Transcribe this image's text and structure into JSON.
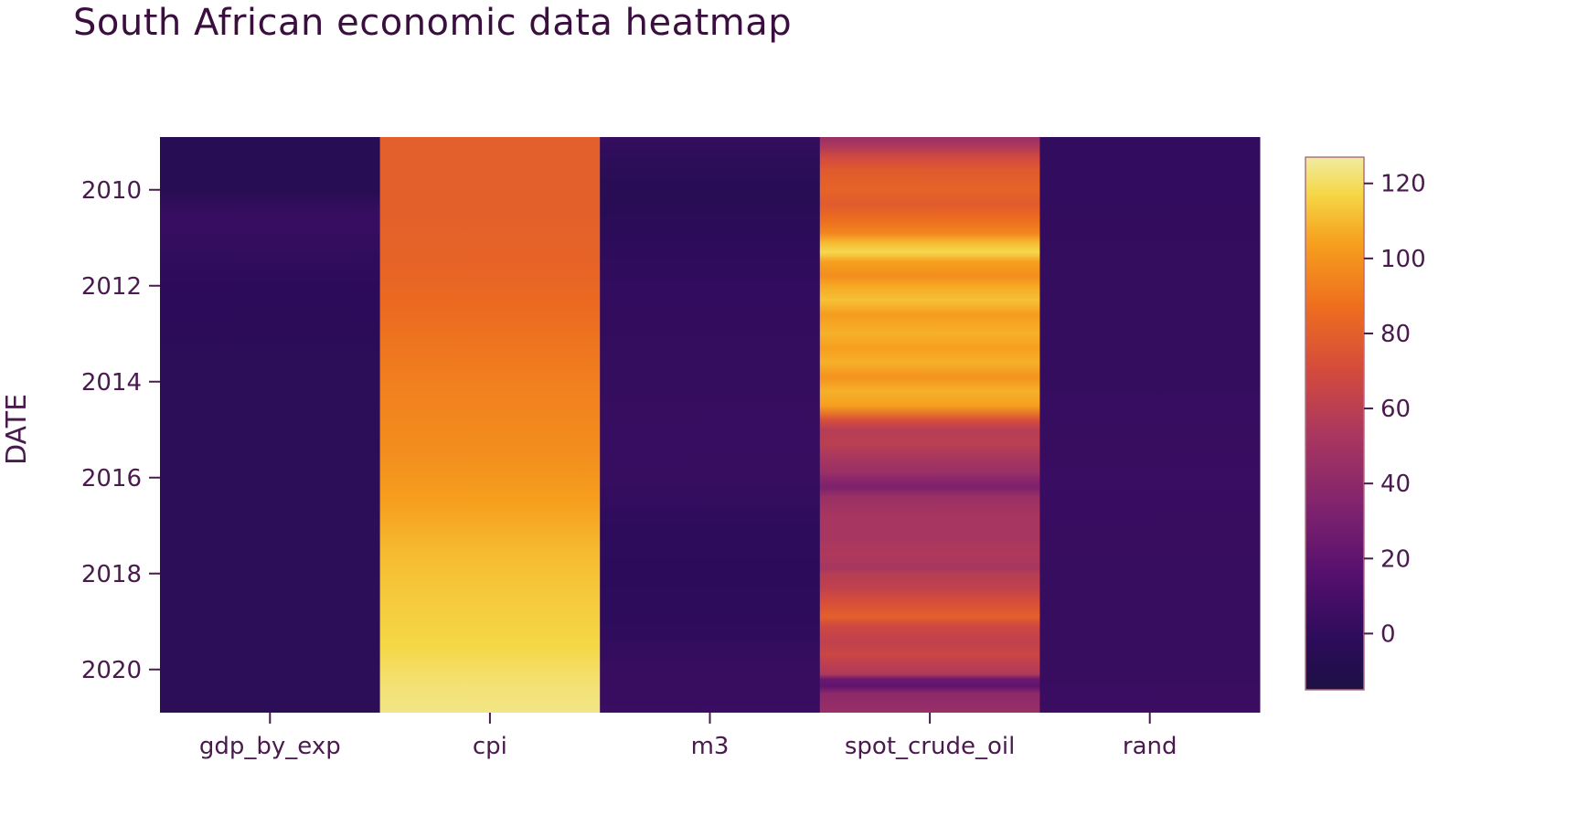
{
  "chart_data": {
    "type": "heatmap",
    "title": "South African economic data heatmap",
    "ylabel": "DATE",
    "xlabel": "",
    "colorscale": "inferno",
    "categories": [
      "gdp_by_exp",
      "cpi",
      "m3",
      "spot_crude_oil",
      "rand"
    ],
    "ylim": [
      2008.9,
      2020.9
    ],
    "y_ticks": [
      2010,
      2012,
      2014,
      2016,
      2018,
      2020
    ],
    "colorbar": {
      "zmin": -15,
      "zmax": 127,
      "ticks": [
        0,
        20,
        40,
        60,
        80,
        100,
        120
      ]
    },
    "series": [
      {
        "name": "gdp_by_exp",
        "points": [
          [
            2008.9,
            -6
          ],
          [
            2010,
            -6
          ],
          [
            2010.5,
            3
          ],
          [
            2011,
            2
          ],
          [
            2012,
            -2
          ],
          [
            2014,
            -3
          ],
          [
            2016,
            -3
          ],
          [
            2018,
            -3
          ],
          [
            2020,
            -3
          ],
          [
            2020.9,
            -3
          ]
        ]
      },
      {
        "name": "cpi",
        "points": [
          [
            2008.9,
            80
          ],
          [
            2010,
            80
          ],
          [
            2011.5,
            82
          ],
          [
            2012.5,
            86
          ],
          [
            2014,
            93
          ],
          [
            2015.5,
            98
          ],
          [
            2016.5,
            104
          ],
          [
            2017.5,
            110
          ],
          [
            2018.5,
            114
          ],
          [
            2019.5,
            117
          ],
          [
            2020.3,
            122
          ],
          [
            2020.9,
            124
          ]
        ]
      },
      {
        "name": "m3",
        "points": [
          [
            2008.9,
            2
          ],
          [
            2009.5,
            -3
          ],
          [
            2010,
            -6
          ],
          [
            2011,
            -2
          ],
          [
            2012,
            1
          ],
          [
            2014,
            2
          ],
          [
            2016,
            3
          ],
          [
            2017,
            -1
          ],
          [
            2018,
            -2
          ],
          [
            2019,
            -1
          ],
          [
            2020,
            3
          ],
          [
            2020.9,
            4
          ]
        ]
      },
      {
        "name": "spot_crude_oil",
        "points": [
          [
            2008.9,
            45
          ],
          [
            2009.1,
            55
          ],
          [
            2009.3,
            68
          ],
          [
            2009.6,
            78
          ],
          [
            2010,
            82
          ],
          [
            2010.3,
            78
          ],
          [
            2010.6,
            86
          ],
          [
            2010.9,
            95
          ],
          [
            2011.1,
            110
          ],
          [
            2011.3,
            118
          ],
          [
            2011.5,
            104
          ],
          [
            2011.8,
            98
          ],
          [
            2012,
            106
          ],
          [
            2012.3,
            112
          ],
          [
            2012.6,
            103
          ],
          [
            2013,
            108
          ],
          [
            2013.3,
            104
          ],
          [
            2013.6,
            108
          ],
          [
            2013.9,
            100
          ],
          [
            2014.2,
            108
          ],
          [
            2014.5,
            104
          ],
          [
            2014.8,
            72
          ],
          [
            2015,
            58
          ],
          [
            2015.3,
            60
          ],
          [
            2015.6,
            52
          ],
          [
            2015.9,
            46
          ],
          [
            2016,
            40
          ],
          [
            2016.2,
            32
          ],
          [
            2016.4,
            46
          ],
          [
            2016.8,
            52
          ],
          [
            2017.2,
            52
          ],
          [
            2017.6,
            55
          ],
          [
            2017.9,
            52
          ],
          [
            2018,
            58
          ],
          [
            2018.3,
            62
          ],
          [
            2018.6,
            72
          ],
          [
            2018.9,
            80
          ],
          [
            2019.1,
            68
          ],
          [
            2019.4,
            62
          ],
          [
            2019.7,
            66
          ],
          [
            2020.1,
            55
          ],
          [
            2020.2,
            25
          ],
          [
            2020.35,
            20
          ],
          [
            2020.5,
            40
          ],
          [
            2020.9,
            45
          ]
        ]
      },
      {
        "name": "rand",
        "points": [
          [
            2008.9,
            1
          ],
          [
            2010,
            1
          ],
          [
            2012,
            2
          ],
          [
            2014,
            2
          ],
          [
            2016,
            4
          ],
          [
            2018,
            3
          ],
          [
            2020,
            3
          ],
          [
            2020.9,
            5
          ]
        ]
      }
    ]
  }
}
